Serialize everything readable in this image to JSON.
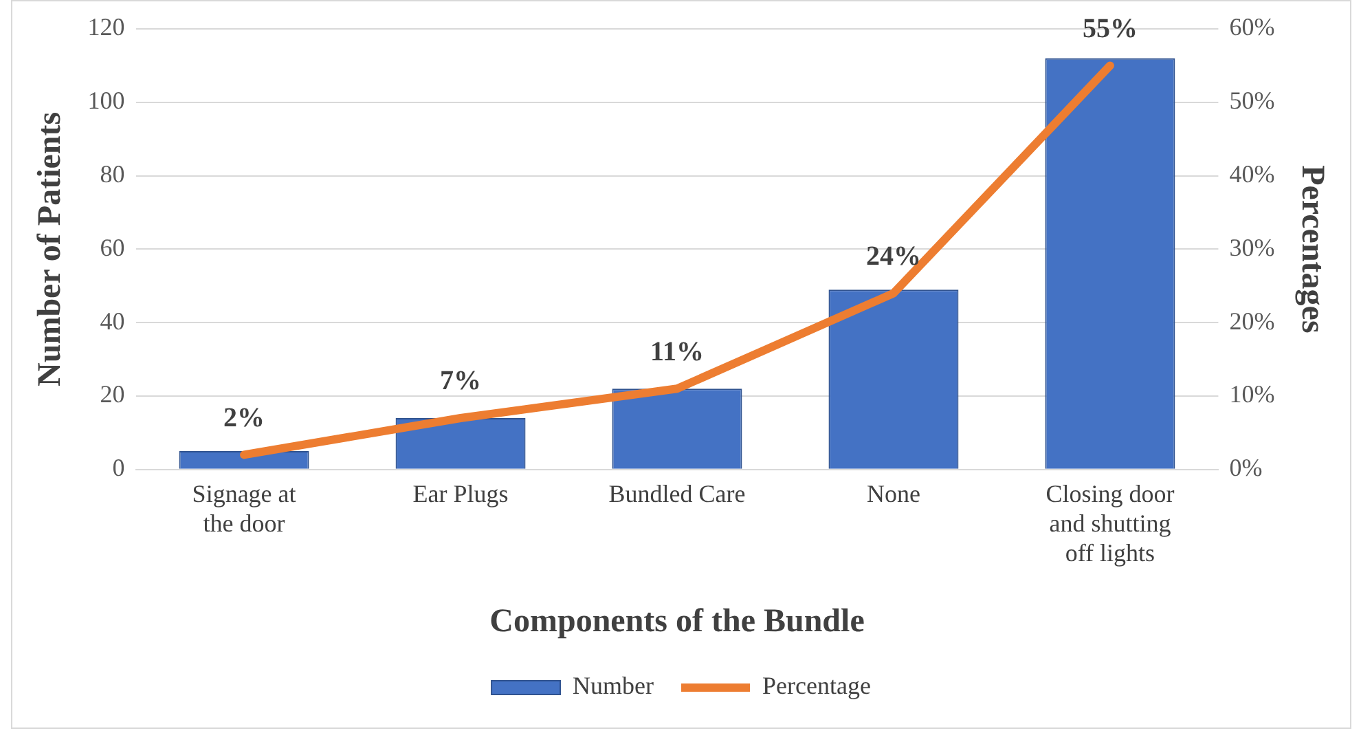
{
  "chart_data": {
    "type": "bar",
    "categories": [
      "Signage at the door",
      "Ear Plugs",
      "Bundled Care",
      "None",
      "Closing door and shutting off lights"
    ],
    "xlabel": "Components of the Bundle",
    "ylabel": "Number of Patients",
    "y2label": "Percentages",
    "series": [
      {
        "name": "Number",
        "color": "#4472c4",
        "values": [
          5,
          14,
          22,
          49,
          112
        ]
      },
      {
        "name": "Percentage",
        "type": "line",
        "axis": "y2",
        "color": "#ed7d31",
        "values": [
          2,
          7,
          11,
          24,
          55
        ],
        "value_labels": [
          "2%",
          "7%",
          "11%",
          "24%",
          "55%"
        ]
      }
    ],
    "ylim": [
      0,
      120
    ],
    "yticks": [
      0,
      20,
      40,
      60,
      80,
      100,
      120
    ],
    "y2lim": [
      0,
      60
    ],
    "y2ticks": [
      {
        "value": 0,
        "label": "0%"
      },
      {
        "value": 10,
        "label": "10%"
      },
      {
        "value": 20,
        "label": "20%"
      },
      {
        "value": 30,
        "label": "30%"
      },
      {
        "value": 40,
        "label": "40%"
      },
      {
        "value": 50,
        "label": "50%"
      },
      {
        "value": 60,
        "label": "60%"
      }
    ],
    "grid": "y",
    "legend": "bottom",
    "marker": "none",
    "line_style": "solid"
  }
}
